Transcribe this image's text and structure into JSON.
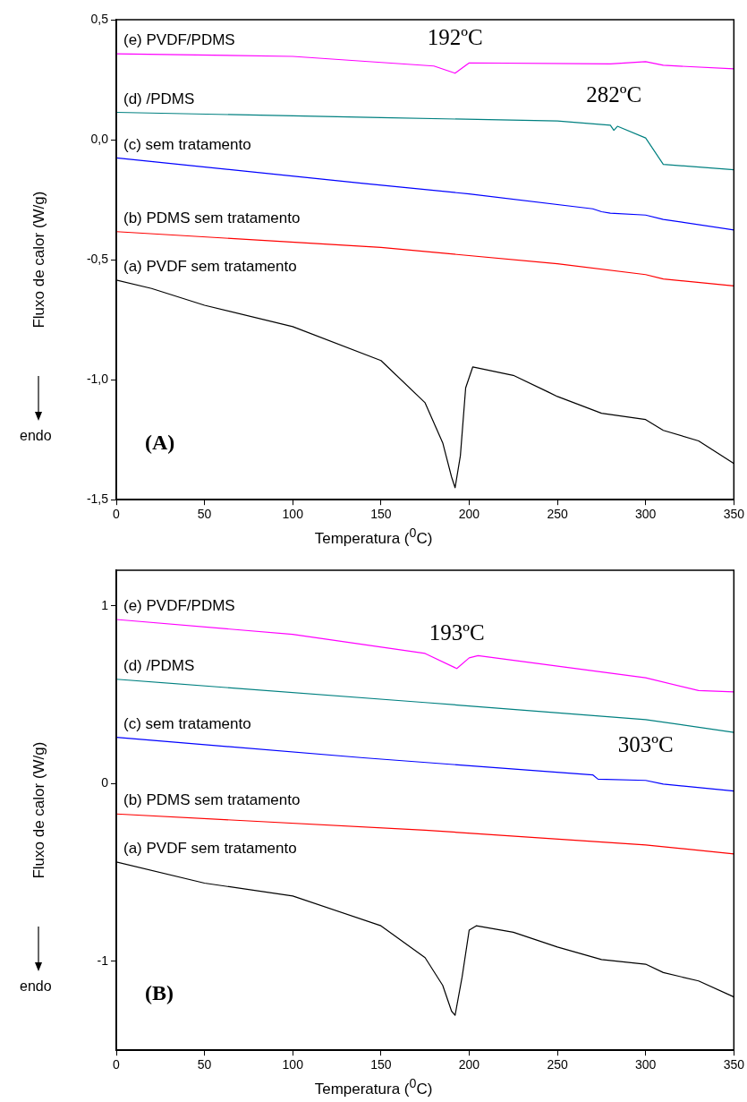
{
  "chart_data": [
    {
      "type": "line",
      "xlabel": "Temperatura ($^{0}$C)",
      "ylabel": "Fluxo de calor (W/g)",
      "xlim": [
        0,
        350
      ],
      "xticks": [
        0,
        50,
        100,
        150,
        200,
        250,
        300,
        350
      ],
      "ylim": [
        -1.5,
        0.5
      ],
      "yticks": [
        {
          "value": -1.5,
          "label": "-1,5"
        },
        {
          "value": -1.0,
          "label": "-1,0"
        },
        {
          "value": -0.5,
          "label": "-0,5"
        },
        {
          "value": 0.0,
          "label": "0,0"
        },
        {
          "value": 0.5,
          "label": "0,5"
        }
      ],
      "grid": false,
      "legend": false,
      "marker": "none",
      "line_style": "solid",
      "annotations": [
        "(A)",
        "endo",
        {
          "text": "192ºC",
          "x": 192,
          "y": 0.277
        },
        {
          "text": "282ºC",
          "x": 282,
          "y": 0.039
        }
      ],
      "series": [
        {
          "name": "(e) PVDF/PDMS",
          "color": "#ff00ff",
          "x": [
            0,
            100,
            180,
            192,
            200,
            280,
            300,
            310,
            350
          ],
          "values": [
            0.358,
            0.347,
            0.307,
            0.277,
            0.32,
            0.316,
            0.325,
            0.31,
            0.295
          ]
        },
        {
          "name": "(d) /PDMS",
          "color": "#008080",
          "x": [
            0,
            150,
            250,
            280,
            282,
            284,
            300,
            310,
            350
          ],
          "values": [
            0.114,
            0.092,
            0.078,
            0.06,
            0.039,
            0.056,
            0.007,
            -0.103,
            -0.125
          ]
        },
        {
          "name": "(c) sem tratamento",
          "color": "#0000ff",
          "x": [
            0,
            140,
            200,
            270,
            275,
            280,
            300,
            310,
            350
          ],
          "values": [
            -0.076,
            -0.182,
            -0.226,
            -0.288,
            -0.3,
            -0.306,
            -0.314,
            -0.332,
            -0.376
          ]
        },
        {
          "name": "(b) PDMS sem tratamento",
          "color": "#ff0000",
          "x": [
            0,
            150,
            250,
            300,
            310,
            350
          ],
          "values": [
            -0.383,
            -0.449,
            -0.517,
            -0.562,
            -0.58,
            -0.609
          ]
        },
        {
          "name": "(a) PVDF sem tratamento",
          "color": "#000000",
          "x": [
            0,
            20,
            50,
            100,
            150,
            175,
            185,
            190,
            192,
            195,
            198,
            202,
            225,
            245,
            250,
            275,
            300,
            310,
            330,
            350
          ],
          "values": [
            -0.585,
            -0.62,
            -0.69,
            -0.779,
            -0.92,
            -1.096,
            -1.263,
            -1.405,
            -1.45,
            -1.317,
            -1.034,
            -0.947,
            -0.982,
            -1.052,
            -1.07,
            -1.14,
            -1.166,
            -1.211,
            -1.255,
            -1.349
          ]
        }
      ]
    },
    {
      "type": "line",
      "xlabel": "Temperatura ($^{0}$C)",
      "ylabel": "Fluxo de calor (W/g)",
      "xlim": [
        0,
        350
      ],
      "xticks": [
        0,
        50,
        100,
        150,
        200,
        250,
        300,
        350
      ],
      "ylim": [
        -1.5,
        1.2
      ],
      "yticks": [
        -1,
        0,
        1
      ],
      "grid": false,
      "legend": false,
      "marker": "none",
      "line_style": "solid",
      "annotations": [
        "(B)",
        "endo",
        {
          "text": "193ºC",
          "x": 193,
          "y": 0.647
        },
        {
          "text": "303ºC",
          "x": 300,
          "y": 0.018
        }
      ],
      "series": [
        {
          "name": "(e) PVDF/PDMS",
          "color": "#ff00ff",
          "x": [
            0,
            100,
            175,
            193,
            200,
            205,
            300,
            330,
            350
          ],
          "values": [
            0.923,
            0.839,
            0.732,
            0.647,
            0.707,
            0.72,
            0.595,
            0.523,
            0.516
          ]
        },
        {
          "name": "(d) /PDMS",
          "color": "#008080",
          "x": [
            0,
            175,
            300,
            350
          ],
          "values": [
            0.587,
            0.456,
            0.36,
            0.288
          ]
        },
        {
          "name": "(c) sem tratamento",
          "color": "#0000ff",
          "x": [
            0,
            140,
            270,
            273,
            300,
            310,
            350
          ],
          "values": [
            0.26,
            0.145,
            0.049,
            0.025,
            0.018,
            -0.003,
            -0.042
          ]
        },
        {
          "name": "(b) PDMS sem tratamento",
          "color": "#ff0000",
          "x": [
            0,
            175,
            300,
            350
          ],
          "values": [
            -0.171,
            -0.262,
            -0.345,
            -0.396
          ]
        },
        {
          "name": "(a) PVDF sem tratamento",
          "color": "#000000",
          "x": [
            0,
            50,
            100,
            150,
            175,
            185,
            190,
            192,
            196,
            200,
            204,
            225,
            250,
            275,
            300,
            310,
            330,
            350
          ],
          "values": [
            -0.441,
            -0.56,
            -0.632,
            -0.8,
            -0.979,
            -1.135,
            -1.28,
            -1.303,
            -1.087,
            -0.824,
            -0.8,
            -0.836,
            -0.919,
            -0.99,
            -1.016,
            -1.063,
            -1.11,
            -1.2
          ]
        }
      ]
    }
  ]
}
